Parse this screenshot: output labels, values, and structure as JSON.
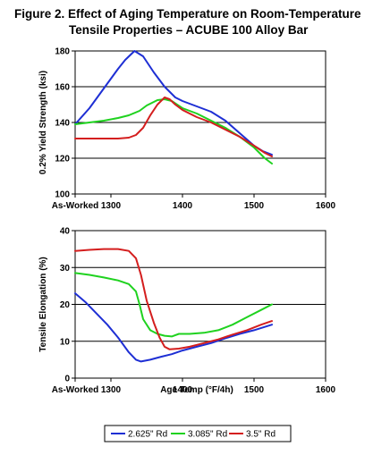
{
  "title": {
    "line1": "Figure 2.  Effect of Aging Temperature on Room-Temperature",
    "line2": "Tensile Properties – ACUBE 100 Alloy Bar"
  },
  "chart_data": [
    {
      "type": "line",
      "ylabel": "0.2% Yield Strength (ksi)",
      "xlabel": "",
      "xlim": [
        1250,
        1600
      ],
      "ylim": [
        100,
        180
      ],
      "x_tick_labels": [
        "As-Worked",
        "1300",
        "1400",
        "1500",
        "1600"
      ],
      "x_tick_values": [
        1250,
        1300,
        1400,
        1500,
        1600
      ],
      "y_tick_values": [
        100,
        120,
        140,
        160,
        180
      ],
      "grid": "horizontal",
      "series": [
        {
          "name": "2.625\" Rd",
          "color": "#1e2fd4",
          "points": [
            [
              1250,
              139
            ],
            [
              1270,
              148
            ],
            [
              1290,
              159
            ],
            [
              1310,
              170
            ],
            [
              1320,
              175
            ],
            [
              1333,
              180
            ],
            [
              1345,
              177
            ],
            [
              1360,
              168
            ],
            [
              1375,
              160
            ],
            [
              1390,
              154
            ],
            [
              1400,
              152
            ],
            [
              1420,
              149
            ],
            [
              1440,
              146
            ],
            [
              1460,
              141
            ],
            [
              1480,
              134
            ],
            [
              1500,
              127
            ],
            [
              1512,
              124
            ],
            [
              1525,
              122
            ]
          ]
        },
        {
          "name": "3.085\" Rd",
          "color": "#1fd21f",
          "points": [
            [
              1250,
              139
            ],
            [
              1270,
              140
            ],
            [
              1290,
              141
            ],
            [
              1310,
              142.5
            ],
            [
              1325,
              144
            ],
            [
              1340,
              146.5
            ],
            [
              1350,
              149.5
            ],
            [
              1365,
              152.5
            ],
            [
              1375,
              153
            ],
            [
              1385,
              152
            ],
            [
              1400,
              148
            ],
            [
              1420,
              145
            ],
            [
              1440,
              141
            ],
            [
              1460,
              137
            ],
            [
              1480,
              132
            ],
            [
              1500,
              126
            ],
            [
              1515,
              120
            ],
            [
              1525,
              117
            ]
          ]
        },
        {
          "name": "3.5\" Rd",
          "color": "#d41e1e",
          "points": [
            [
              1250,
              131
            ],
            [
              1280,
              131
            ],
            [
              1310,
              131
            ],
            [
              1325,
              131.5
            ],
            [
              1335,
              133
            ],
            [
              1345,
              137
            ],
            [
              1355,
              144
            ],
            [
              1365,
              150
            ],
            [
              1375,
              154
            ],
            [
              1382,
              153
            ],
            [
              1390,
              150
            ],
            [
              1400,
              147
            ],
            [
              1420,
              143
            ],
            [
              1440,
              140
            ],
            [
              1460,
              136
            ],
            [
              1480,
              132
            ],
            [
              1500,
              127
            ],
            [
              1515,
              123
            ],
            [
              1525,
              121
            ]
          ]
        }
      ]
    },
    {
      "type": "line",
      "ylabel": "Tensile Elongation (%)",
      "xlabel": "Age Temp (°F/4h)",
      "xlim": [
        1250,
        1600
      ],
      "ylim": [
        0,
        40
      ],
      "x_tick_labels": [
        "As-Worked",
        "1300",
        "1400",
        "1500",
        "1600"
      ],
      "x_tick_values": [
        1250,
        1300,
        1400,
        1500,
        1600
      ],
      "y_tick_values": [
        0,
        10,
        20,
        30,
        40
      ],
      "grid": "horizontal",
      "series": [
        {
          "name": "2.625\" Rd",
          "color": "#1e2fd4",
          "points": [
            [
              1250,
              23
            ],
            [
              1265,
              20.5
            ],
            [
              1280,
              17.5
            ],
            [
              1295,
              14.5
            ],
            [
              1310,
              11
            ],
            [
              1325,
              7
            ],
            [
              1335,
              5
            ],
            [
              1342,
              4.5
            ],
            [
              1355,
              5
            ],
            [
              1370,
              5.8
            ],
            [
              1385,
              6.5
            ],
            [
              1400,
              7.5
            ],
            [
              1420,
              8.5
            ],
            [
              1440,
              9.5
            ],
            [
              1460,
              10.8
            ],
            [
              1480,
              12
            ],
            [
              1500,
              13
            ],
            [
              1525,
              14.5
            ]
          ]
        },
        {
          "name": "3.085\" Rd",
          "color": "#1fd21f",
          "points": [
            [
              1250,
              28.5
            ],
            [
              1270,
              28
            ],
            [
              1290,
              27.3
            ],
            [
              1310,
              26.5
            ],
            [
              1325,
              25.5
            ],
            [
              1335,
              23.5
            ],
            [
              1340,
              20
            ],
            [
              1345,
              16
            ],
            [
              1355,
              13
            ],
            [
              1365,
              12
            ],
            [
              1375,
              11.5
            ],
            [
              1385,
              11.3
            ],
            [
              1395,
              12
            ],
            [
              1410,
              12
            ],
            [
              1430,
              12.3
            ],
            [
              1450,
              13
            ],
            [
              1470,
              14.5
            ],
            [
              1490,
              16.5
            ],
            [
              1510,
              18.5
            ],
            [
              1525,
              20
            ]
          ]
        },
        {
          "name": "3.5\" Rd",
          "color": "#d41e1e",
          "points": [
            [
              1250,
              34.5
            ],
            [
              1270,
              34.8
            ],
            [
              1290,
              35
            ],
            [
              1310,
              35
            ],
            [
              1325,
              34.5
            ],
            [
              1335,
              32.5
            ],
            [
              1342,
              28
            ],
            [
              1350,
              21
            ],
            [
              1360,
              15
            ],
            [
              1368,
              11
            ],
            [
              1375,
              8.5
            ],
            [
              1382,
              7.8
            ],
            [
              1395,
              8
            ],
            [
              1410,
              8.5
            ],
            [
              1430,
              9.5
            ],
            [
              1450,
              10.5
            ],
            [
              1470,
              11.8
            ],
            [
              1490,
              13
            ],
            [
              1510,
              14.5
            ],
            [
              1525,
              15.5
            ]
          ]
        }
      ]
    }
  ],
  "legend": {
    "items": [
      {
        "label": "2.625\" Rd",
        "color": "#1e2fd4"
      },
      {
        "label": "3.085\" Rd",
        "color": "#1fd21f"
      },
      {
        "label": "3.5\" Rd",
        "color": "#d41e1e"
      }
    ]
  }
}
